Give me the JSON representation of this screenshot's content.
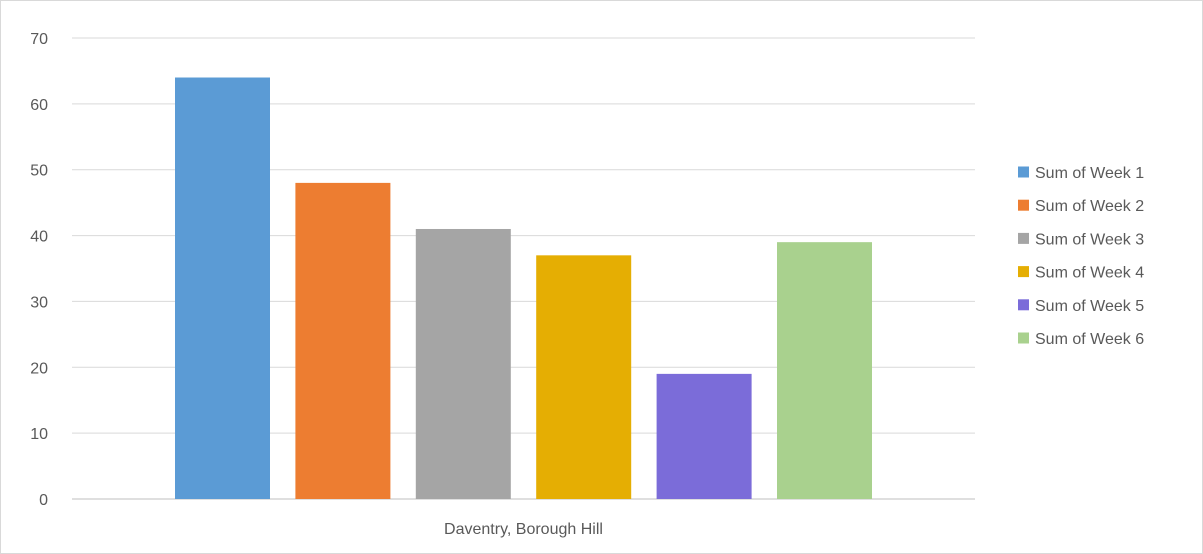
{
  "chart_data": {
    "type": "bar",
    "categories": [
      "Daventry, Borough Hill"
    ],
    "series": [
      {
        "name": "Sum of Week 1",
        "values": [
          64
        ],
        "color": "#5b9bd5"
      },
      {
        "name": "Sum of Week 2",
        "values": [
          48
        ],
        "color": "#ed7d31"
      },
      {
        "name": "Sum of Week 3",
        "values": [
          41
        ],
        "color": "#a5a5a5"
      },
      {
        "name": "Sum of Week 4",
        "values": [
          37
        ],
        "color": "#e5ae03"
      },
      {
        "name": "Sum of Week 5",
        "values": [
          19
        ],
        "color": "#7b6cd9"
      },
      {
        "name": "Sum of Week 6",
        "values": [
          39
        ],
        "color": "#a9d18e"
      }
    ],
    "y_ticks": [
      "0",
      "10",
      "20",
      "30",
      "40",
      "50",
      "60",
      "70"
    ],
    "ylim": [
      0,
      70
    ],
    "grid": true,
    "legend_position": "right"
  }
}
